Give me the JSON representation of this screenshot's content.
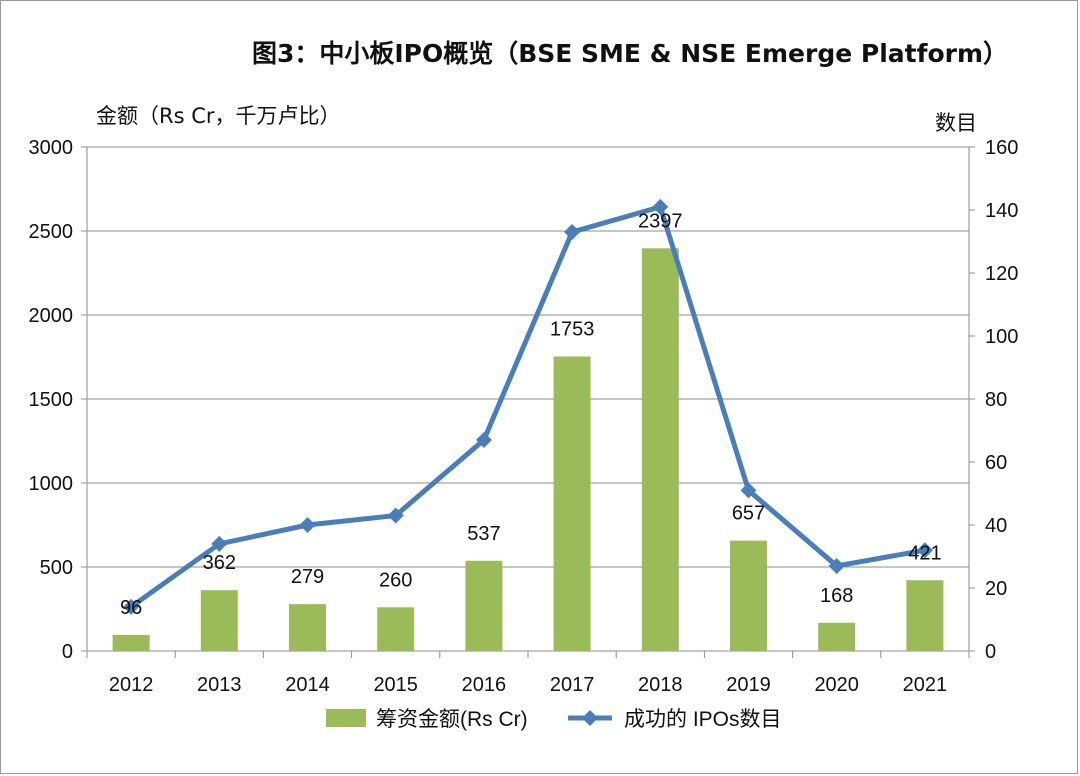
{
  "chart_data": {
    "type": "bar",
    "title": "图3：中小板IPO概览（BSE SME & NSE Emerge Platform）",
    "ylabel": "金额（Rs Cr，千万卢比）",
    "y2label": "数目",
    "categories": [
      "2012",
      "2013",
      "2014",
      "2015",
      "2016",
      "2017",
      "2018",
      "2019",
      "2020",
      "2021"
    ],
    "ylim": [
      0,
      3000
    ],
    "y2lim": [
      0,
      160
    ],
    "yticks": [
      "0",
      "500",
      "1000",
      "1500",
      "2000",
      "2500",
      "3000"
    ],
    "y2ticks": [
      "0",
      "20",
      "40",
      "60",
      "80",
      "100",
      "120",
      "140",
      "160"
    ],
    "grid": true,
    "legend_position": "bottom",
    "series": [
      {
        "name": "筹资金额(Rs Cr)",
        "type": "bar",
        "axis": "left",
        "color": "#9bbb59",
        "values": [
          96,
          362,
          279,
          260,
          537,
          1753,
          2397,
          657,
          168,
          421
        ],
        "labels": [
          "96",
          "362",
          "279",
          "260",
          "537",
          "1753",
          "2397",
          "657",
          "168",
          "421"
        ]
      },
      {
        "name": "成功的 IPOs数目",
        "type": "line",
        "axis": "right",
        "marker": "diamond",
        "color": "#4a7ebb",
        "values": [
          14,
          34,
          40,
          43,
          67,
          133,
          141,
          51,
          27,
          32
        ]
      }
    ]
  }
}
